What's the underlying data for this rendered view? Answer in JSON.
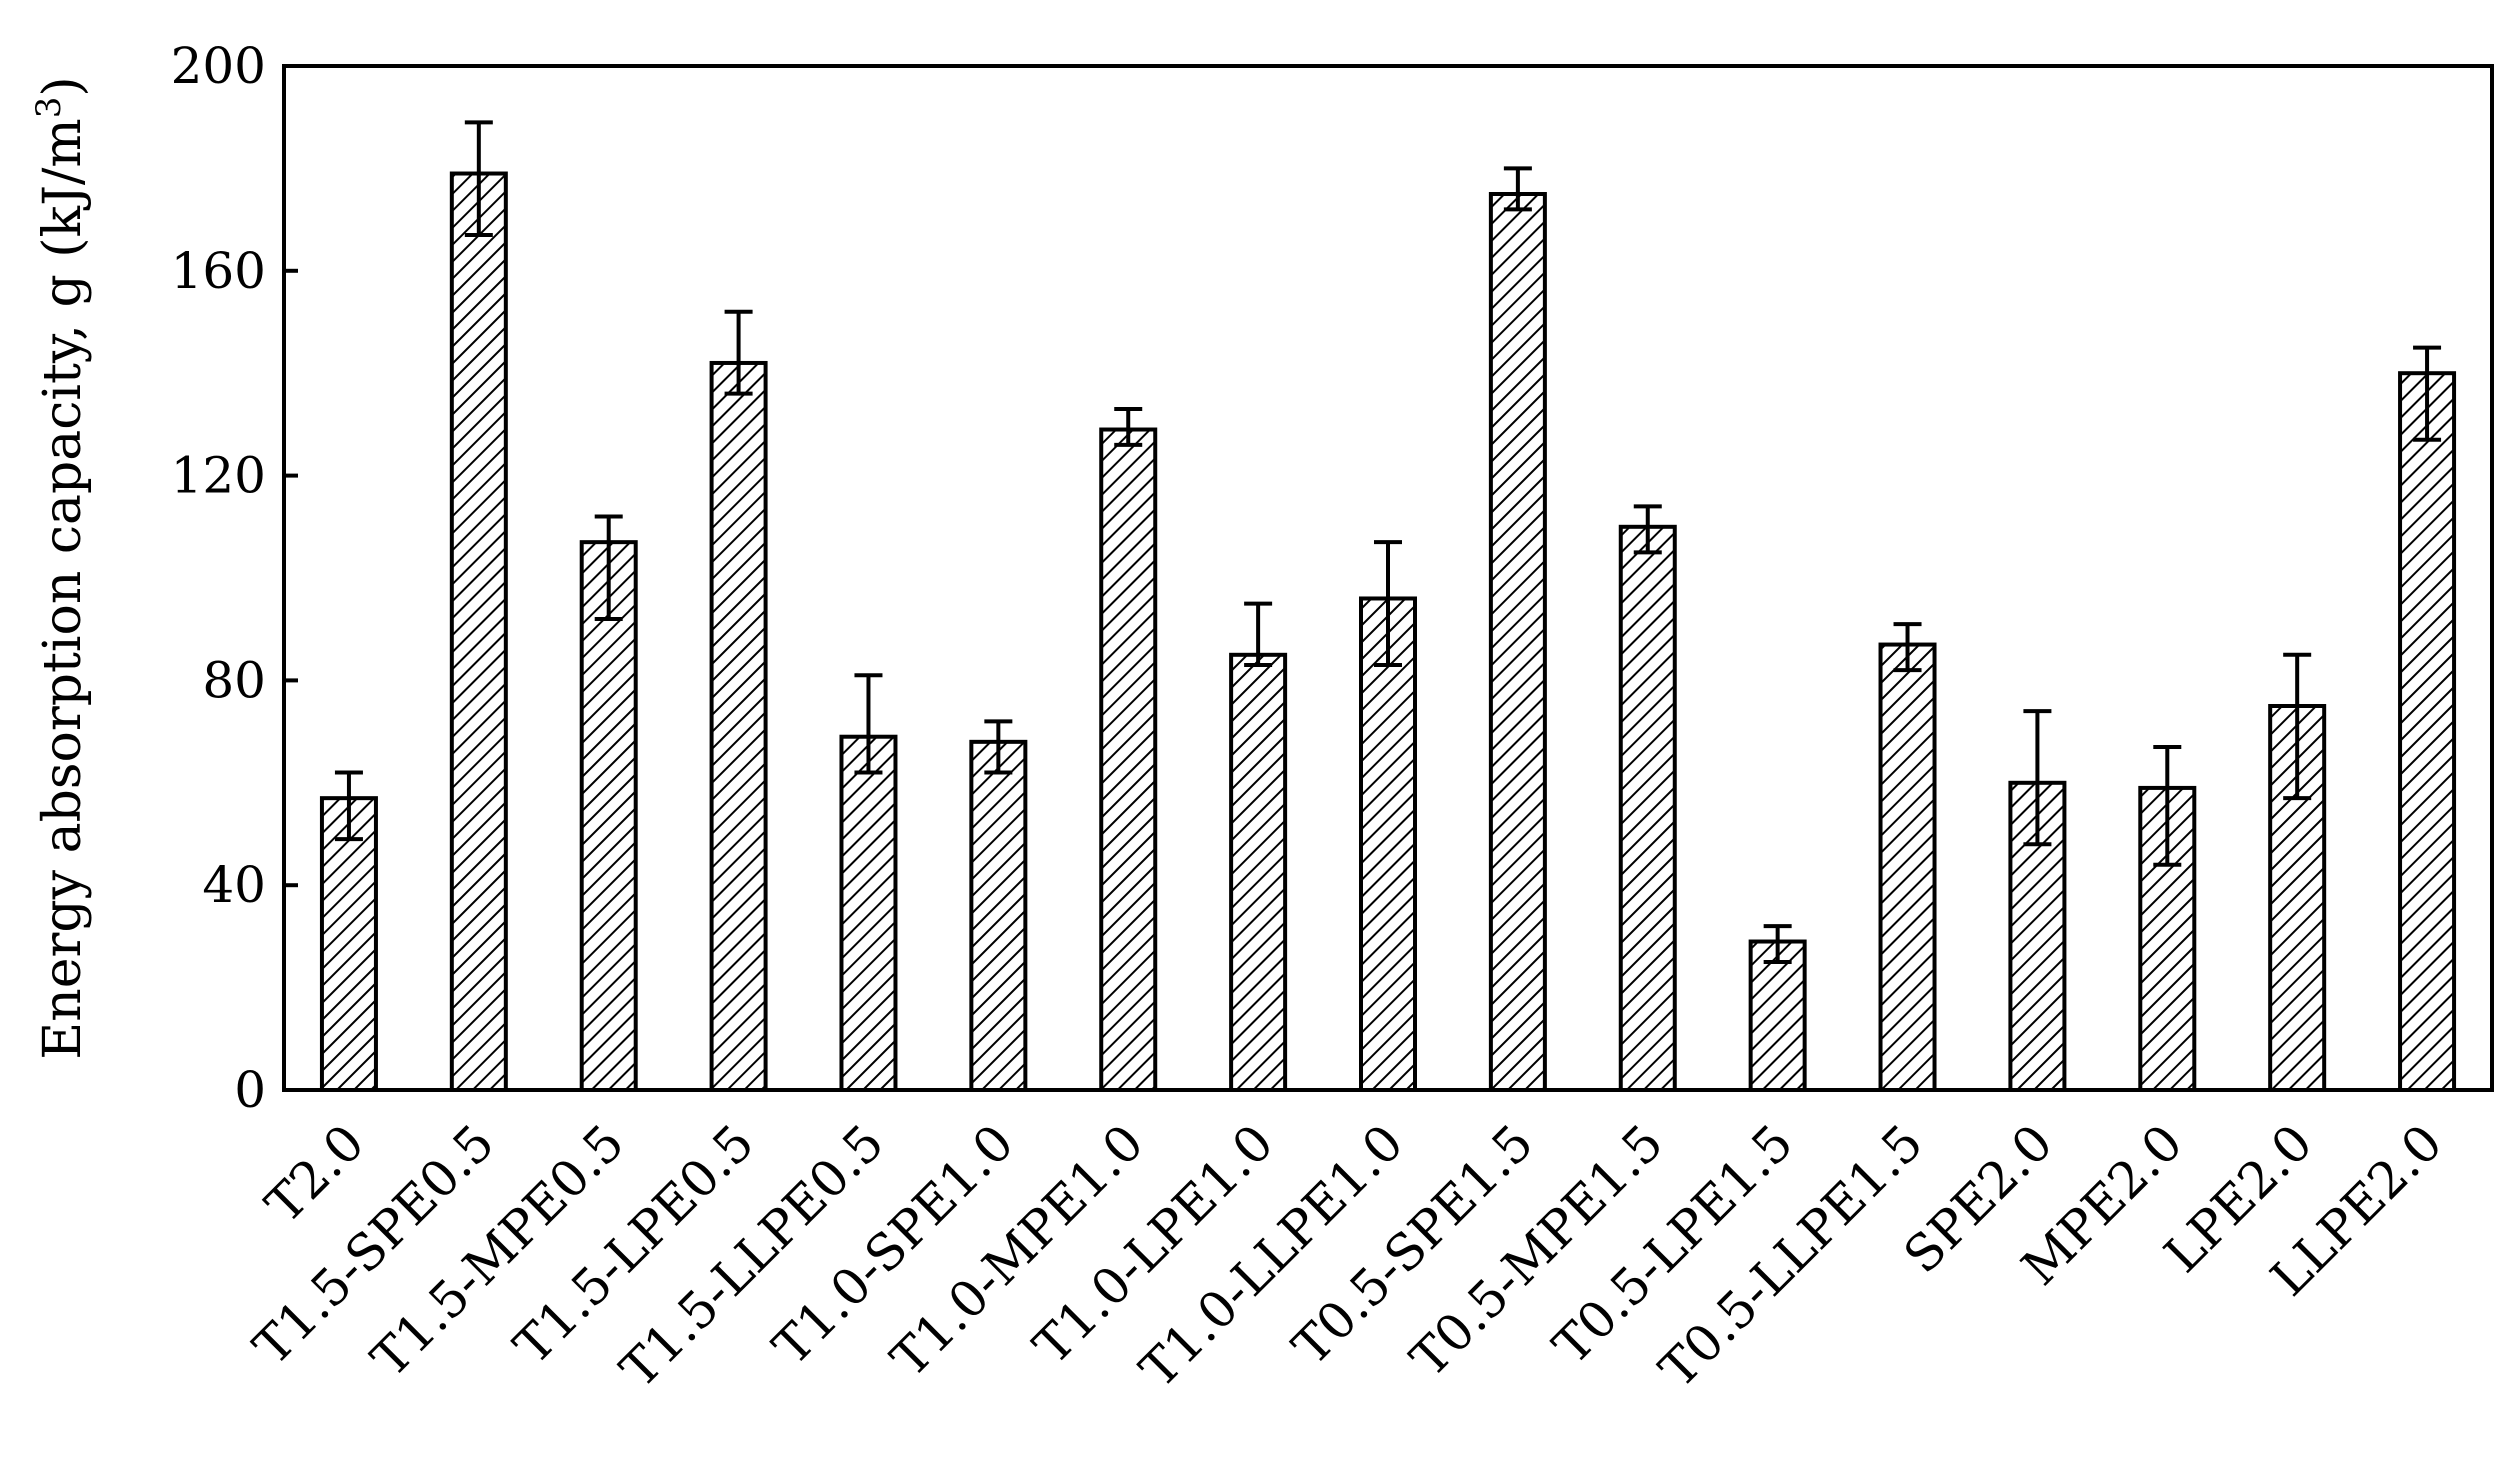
{
  "chart_data": {
    "type": "bar",
    "title": "",
    "xlabel": "",
    "ylabel": "Energy absorption capacity, g (kJ/m",
    "ylabel_superscript": "3",
    "ylabel_suffix": ")",
    "ylim": [
      0,
      200
    ],
    "yticks": [
      0,
      40,
      80,
      120,
      160,
      200
    ],
    "grid": false,
    "legend": "none",
    "bar_pattern": "diagonal-hatch",
    "bar_color": "#000000",
    "categories": [
      "T2.0",
      "T1.5-SPE0.5",
      "T1.5-MPE0.5",
      "T1.5-LPE0.5",
      "T1.5-LLPE0.5",
      "T1.0-SPE1.0",
      "T1.0-MPE1.0",
      "T1.0-LPE1.0",
      "T1.0-LLPE1.0",
      "T0.5-SPE1.5",
      "T0.5-MPE1.5",
      "T0.5-LPE1.5",
      "T0.5-LLPE1.5",
      "SPE2.0",
      "MPE2.0",
      "LPE2.0",
      "LLPE2.0"
    ],
    "values": [
      57,
      179,
      107,
      142,
      69,
      68,
      129,
      85,
      96,
      175,
      110,
      29,
      87,
      60,
      59,
      75,
      140
    ],
    "error_low": [
      49,
      167,
      92,
      136,
      62,
      62,
      126,
      83,
      83,
      172,
      105,
      25,
      82,
      48,
      44,
      57,
      127
    ],
    "error_high": [
      62,
      189,
      112,
      152,
      81,
      72,
      133,
      95,
      107,
      180,
      114,
      32,
      91,
      74,
      67,
      85,
      145
    ]
  }
}
